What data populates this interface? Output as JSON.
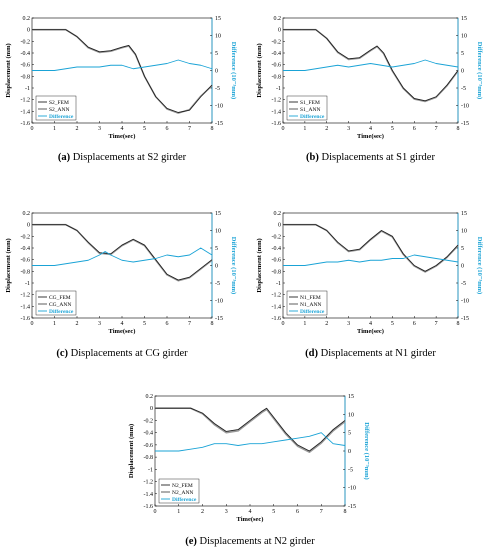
{
  "colors": {
    "fem": "#222222",
    "ann": "#9a9a9a",
    "diff": "#1aa3d6"
  },
  "chart_data": [
    {
      "type": "line",
      "caption_letter": "(a)",
      "caption_text": "Displacements at S2 girder",
      "xlabel": "Time(sec)",
      "ylabel": "Displacement (mm)",
      "y2label": "Difference (10⁻³mm)",
      "xlim": [
        0,
        8
      ],
      "ylim": [
        -1.6,
        0.2
      ],
      "y2lim": [
        -15,
        15
      ],
      "x_ticks": [
        "0",
        "1",
        "2",
        "3",
        "4",
        "5",
        "6",
        "7",
        "8"
      ],
      "y_ticks": [
        "0.2",
        "0",
        "-0.2",
        "-0.4",
        "-0.6",
        "-0.8",
        "-1",
        "-1.2",
        "-1.4",
        "-1.6"
      ],
      "y2_ticks": [
        "15",
        "10",
        "5",
        "0",
        "-5",
        "-10",
        "-15"
      ],
      "legend": [
        "S2_FEM",
        "S2_ANN",
        "Difference"
      ],
      "series": [
        {
          "name": "S2_FEM",
          "x": [
            0,
            1,
            1.5,
            2,
            2.5,
            3,
            3.5,
            4,
            4.3,
            4.6,
            5,
            5.5,
            6,
            6.5,
            7,
            7.5,
            8
          ],
          "y": [
            0,
            0,
            0,
            -0.12,
            -0.3,
            -0.38,
            -0.36,
            -0.3,
            -0.27,
            -0.42,
            -0.8,
            -1.15,
            -1.35,
            -1.42,
            -1.38,
            -1.15,
            -0.95
          ]
        },
        {
          "name": "S2_ANN",
          "x": [
            0,
            1,
            1.5,
            2,
            2.5,
            3,
            3.5,
            4,
            4.3,
            4.6,
            5,
            5.5,
            6,
            6.5,
            7,
            7.5,
            8
          ],
          "y": [
            0,
            0,
            0,
            -0.12,
            -0.31,
            -0.39,
            -0.37,
            -0.31,
            -0.28,
            -0.43,
            -0.8,
            -1.15,
            -1.36,
            -1.43,
            -1.37,
            -1.14,
            -0.96
          ]
        },
        {
          "name": "Difference",
          "x": [
            0,
            1,
            1.5,
            2,
            2.5,
            3,
            3.5,
            4,
            4.5,
            5,
            5.5,
            6,
            6.5,
            7,
            7.5,
            8
          ],
          "y": [
            0,
            0,
            0.5,
            1,
            1,
            1,
            1.5,
            1.5,
            0.5,
            1,
            1.5,
            2,
            3,
            2,
            1.5,
            0.5
          ]
        }
      ]
    },
    {
      "type": "line",
      "caption_letter": "(b)",
      "caption_text": "Displacements at S1 girder",
      "xlabel": "Time(sec)",
      "ylabel": "Displacement (mm)",
      "y2label": "Difference (10⁻³mm)",
      "xlim": [
        0,
        8
      ],
      "ylim": [
        -1.6,
        0.2
      ],
      "y2lim": [
        -15,
        15
      ],
      "x_ticks": [
        "0",
        "1",
        "2",
        "3",
        "4",
        "5",
        "6",
        "7",
        "8"
      ],
      "y_ticks": [
        "0.2",
        "0",
        "-0.2",
        "-0.4",
        "-0.6",
        "-0.8",
        "-1",
        "-1.2",
        "-1.4",
        "-1.6"
      ],
      "y2_ticks": [
        "15",
        "10",
        "5",
        "0",
        "-5",
        "-10",
        "-15"
      ],
      "legend": [
        "S1_FEM",
        "S1_ANN",
        "Difference"
      ],
      "series": [
        {
          "name": "S1_FEM",
          "x": [
            0,
            1,
            1.5,
            2,
            2.5,
            3,
            3.5,
            4,
            4.3,
            4.6,
            5,
            5.5,
            6,
            6.5,
            7,
            7.5,
            8
          ],
          "y": [
            0,
            0,
            0,
            -0.15,
            -0.38,
            -0.5,
            -0.48,
            -0.35,
            -0.28,
            -0.4,
            -0.7,
            -1,
            -1.18,
            -1.22,
            -1.15,
            -0.95,
            -0.7
          ]
        },
        {
          "name": "S1_ANN",
          "x": [
            0,
            1,
            1.5,
            2,
            2.5,
            3,
            3.5,
            4,
            4.3,
            4.6,
            5,
            5.5,
            6,
            6.5,
            7,
            7.5,
            8
          ],
          "y": [
            0,
            0,
            0,
            -0.15,
            -0.39,
            -0.51,
            -0.49,
            -0.36,
            -0.29,
            -0.41,
            -0.71,
            -1.01,
            -1.19,
            -1.23,
            -1.16,
            -0.96,
            -0.71
          ]
        },
        {
          "name": "Difference",
          "x": [
            0,
            1,
            1.5,
            2,
            2.5,
            3,
            3.5,
            4,
            4.5,
            5,
            5.5,
            6,
            6.5,
            7,
            7.5,
            8
          ],
          "y": [
            0,
            0,
            0.5,
            1,
            1.5,
            1,
            1.5,
            2,
            1.5,
            1,
            1.5,
            2,
            3,
            2,
            1.5,
            1
          ]
        }
      ]
    },
    {
      "type": "line",
      "caption_letter": "(c)",
      "caption_text": "Displacements at CG girder",
      "xlabel": "Time(sec)",
      "ylabel": "Displacement (mm)",
      "y2label": "Difference (10⁻³mm)",
      "xlim": [
        0,
        8
      ],
      "ylim": [
        -1.6,
        0.2
      ],
      "y2lim": [
        -15,
        15
      ],
      "x_ticks": [
        "0",
        "1",
        "2",
        "3",
        "4",
        "5",
        "6",
        "7",
        "8"
      ],
      "y_ticks": [
        "0.2",
        "0",
        "-0.2",
        "-0.4",
        "-0.6",
        "-0.8",
        "-1",
        "-1.2",
        "-1.4",
        "-1.6"
      ],
      "y2_ticks": [
        "15",
        "10",
        "5",
        "0",
        "-5",
        "-10",
        "-15"
      ],
      "legend": [
        "CG_FEM",
        "CG_ANN",
        "Difference"
      ],
      "series": [
        {
          "name": "CG_FEM",
          "x": [
            0,
            1,
            1.5,
            2,
            2.5,
            3,
            3.5,
            4,
            4.5,
            5,
            5.5,
            6,
            6.5,
            7,
            7.5,
            8
          ],
          "y": [
            0,
            0,
            0,
            -0.1,
            -0.3,
            -0.48,
            -0.5,
            -0.35,
            -0.25,
            -0.35,
            -0.6,
            -0.85,
            -0.95,
            -0.9,
            -0.75,
            -0.6
          ]
        },
        {
          "name": "CG_ANN",
          "x": [
            0,
            1,
            1.5,
            2,
            2.5,
            3,
            3.5,
            4,
            4.5,
            5,
            5.5,
            6,
            6.5,
            7,
            7.5,
            8
          ],
          "y": [
            0,
            0,
            0,
            -0.1,
            -0.31,
            -0.49,
            -0.51,
            -0.36,
            -0.26,
            -0.36,
            -0.61,
            -0.86,
            -0.96,
            -0.91,
            -0.76,
            -0.61
          ]
        },
        {
          "name": "Difference",
          "x": [
            0,
            1,
            1.5,
            2,
            2.5,
            3,
            3.25,
            3.5,
            4,
            4.5,
            5,
            5.5,
            6,
            6.5,
            7,
            7.5,
            8
          ],
          "y": [
            0,
            0,
            0.5,
            1,
            1.5,
            3,
            4,
            3,
            1.5,
            1,
            1.5,
            2,
            3,
            2.5,
            3,
            5,
            3
          ]
        }
      ]
    },
    {
      "type": "line",
      "caption_letter": "(d)",
      "caption_text": "Displacements at N1 girder",
      "xlabel": "Time(sec)",
      "ylabel": "Displacement (mm)",
      "y2label": "Difference (10⁻³mm)",
      "xlim": [
        0,
        8
      ],
      "ylim": [
        -1.6,
        0.2
      ],
      "y2lim": [
        -15,
        15
      ],
      "x_ticks": [
        "0",
        "1",
        "2",
        "3",
        "4",
        "5",
        "6",
        "7",
        "8"
      ],
      "y_ticks": [
        "0.2",
        "0",
        "-0.2",
        "-0.4",
        "-0.6",
        "-0.8",
        "-1",
        "-1.2",
        "-1.4",
        "-1.6"
      ],
      "y2_ticks": [
        "15",
        "10",
        "5",
        "0",
        "-5",
        "-10",
        "-15"
      ],
      "legend": [
        "N1_FEM",
        "N1_ANN",
        "Difference"
      ],
      "series": [
        {
          "name": "N1_FEM",
          "x": [
            0,
            1,
            1.5,
            2,
            2.5,
            3,
            3.5,
            4,
            4.5,
            5,
            5.5,
            6,
            6.5,
            7,
            7.5,
            8
          ],
          "y": [
            0,
            0,
            0,
            -0.1,
            -0.3,
            -0.45,
            -0.42,
            -0.25,
            -0.1,
            -0.2,
            -0.5,
            -0.7,
            -0.8,
            -0.7,
            -0.55,
            -0.35
          ]
        },
        {
          "name": "N1_ANN",
          "x": [
            0,
            1,
            1.5,
            2,
            2.5,
            3,
            3.5,
            4,
            4.5,
            5,
            5.5,
            6,
            6.5,
            7,
            7.5,
            8
          ],
          "y": [
            0,
            0,
            0,
            -0.1,
            -0.31,
            -0.46,
            -0.43,
            -0.26,
            -0.11,
            -0.21,
            -0.51,
            -0.71,
            -0.81,
            -0.71,
            -0.56,
            -0.36
          ]
        },
        {
          "name": "Difference",
          "x": [
            0,
            1,
            1.5,
            2,
            2.5,
            3,
            3.5,
            4,
            4.5,
            5,
            5.5,
            6,
            6.5,
            7,
            7.5,
            8
          ],
          "y": [
            0,
            0,
            0.5,
            1,
            1,
            1.5,
            1,
            1.5,
            1.5,
            2,
            2,
            3,
            2.5,
            2,
            1.5,
            1
          ]
        }
      ]
    },
    {
      "type": "line",
      "caption_letter": "(e)",
      "caption_text": "Displacements at N2 girder",
      "xlabel": "Time(sec)",
      "ylabel": "Displacement (mm)",
      "y2label": "Difference (10⁻³mm)",
      "xlim": [
        0,
        8
      ],
      "ylim": [
        -1.6,
        0.2
      ],
      "y2lim": [
        -15,
        15
      ],
      "x_ticks": [
        "0",
        "1",
        "2",
        "3",
        "4",
        "5",
        "6",
        "7",
        "8"
      ],
      "y_ticks": [
        "0.2",
        "0",
        "-0.2",
        "-0.4",
        "-0.6",
        "-0.8",
        "-1",
        "-1.2",
        "-1.4",
        "-1.6"
      ],
      "y2_ticks": [
        "15",
        "10",
        "5",
        "0",
        "-5",
        "-10",
        "-15"
      ],
      "legend": [
        "N2_FEM",
        "N2_ANN",
        "Difference"
      ],
      "series": [
        {
          "name": "N2_FEM",
          "x": [
            0,
            1,
            1.5,
            2,
            2.5,
            3,
            3.5,
            4,
            4.5,
            4.7,
            5,
            5.5,
            6,
            6.5,
            7,
            7.5,
            8
          ],
          "y": [
            0,
            0,
            0,
            -0.08,
            -0.25,
            -0.38,
            -0.35,
            -0.2,
            -0.05,
            0,
            -0.15,
            -0.4,
            -0.6,
            -0.7,
            -0.55,
            -0.35,
            -0.2
          ]
        },
        {
          "name": "N2_ANN",
          "x": [
            0,
            1,
            1.5,
            2,
            2.5,
            3,
            3.5,
            4,
            4.5,
            4.7,
            5,
            5.5,
            6,
            6.5,
            7,
            7.5,
            8
          ],
          "y": [
            0,
            0,
            0,
            -0.09,
            -0.27,
            -0.4,
            -0.37,
            -0.22,
            -0.07,
            -0.02,
            -0.17,
            -0.42,
            -0.62,
            -0.72,
            -0.57,
            -0.37,
            -0.22
          ]
        },
        {
          "name": "Difference",
          "x": [
            0,
            1,
            1.5,
            2,
            2.5,
            3,
            3.5,
            4,
            4.5,
            5,
            5.5,
            6,
            6.5,
            7,
            7.5,
            8
          ],
          "y": [
            0,
            0,
            0.5,
            1,
            2,
            2,
            1.5,
            2,
            2,
            2.5,
            3,
            3.5,
            4,
            5,
            2,
            1.5
          ]
        }
      ]
    }
  ]
}
